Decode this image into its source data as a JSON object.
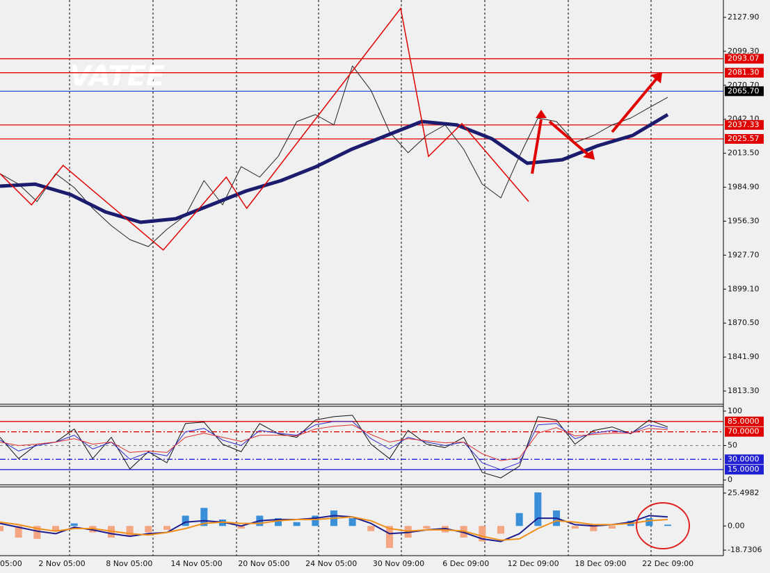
{
  "chart_data": [
    {
      "type": "line",
      "watermark": "VATEE",
      "ylim": [
        1802.2,
        2142.5
      ],
      "yticks": [
        {
          "value": 2127.9,
          "label": "2127.90"
        },
        {
          "value": 2099.3,
          "label": "2099.30"
        },
        {
          "value": 2070.7,
          "label": "2070.70"
        },
        {
          "value": 2042.1,
          "label": "2042.10"
        },
        {
          "value": 2013.5,
          "label": "2013.50"
        },
        {
          "value": 1984.9,
          "label": "1984.90"
        },
        {
          "value": 1956.3,
          "label": "1956.30"
        },
        {
          "value": 1927.7,
          "label": "1927.70"
        },
        {
          "value": 1899.1,
          "label": "1899.10"
        },
        {
          "value": 1870.5,
          "label": "1870.50"
        },
        {
          "value": 1841.9,
          "label": "1841.90"
        },
        {
          "value": 1813.3,
          "label": "1813.30"
        }
      ],
      "levels": [
        {
          "value": 2093.07,
          "color": "#e00000"
        },
        {
          "value": 2081.3,
          "label": "2081.30",
          "color": "#e00000"
        },
        {
          "value": 2065.7,
          "label": "2065.70",
          "color": "#3050e0",
          "box": "#000000"
        },
        {
          "value": 2037.33,
          "color": "#e00000"
        },
        {
          "value": 2025.57,
          "color": "#e00000"
        }
      ],
      "series": [
        {
          "color": "#222222",
          "width": 1,
          "values": [
            1996.3,
            1987.5,
            1972.9,
            1996.3,
            1984.6,
            1967.1,
            1952.5,
            1940.8,
            1934.9,
            1949.5,
            1961.2,
            1990.5,
            1970.0,
            2002.2,
            1993.4,
            2010.9,
            2040.2,
            2046.0,
            2037.3,
            2087.0,
            2066.5,
            2031.4,
            2013.9,
            2028.5,
            2037.3,
            2016.8,
            1987.5,
            1975.9,
            2010.9,
            2043.1,
            2040.2,
            2022.6,
            2028.5,
            2037.3,
            2043.1,
            2051.9,
            2060.6
          ]
        },
        {
          "color": "#1c1c6e",
          "width": 5,
          "values": [
            1985.8,
            1987.5,
            1978.8,
            1964.1,
            1955.4,
            1958.3,
            1970.0,
            1981.7,
            1990.5,
            2002.2,
            2016.8,
            2028.5,
            2040.2,
            2037.3,
            2025.6,
            2005.1,
            2008.0,
            2019.7,
            2028.5,
            2046.0
          ]
        }
      ],
      "zigzag": {
        "color": "#e00000",
        "x": [
          0,
          1.7,
          3.4,
          8.8,
          12.2,
          13.3,
          21.6,
          23.1,
          24.9,
          28.5
        ],
        "values": [
          1996.3,
          1970.0,
          2003.3,
          1932.0,
          1993.4,
          1967.1,
          2135.5,
          2010.9,
          2038.4,
          1972.9
        ]
      }
    },
    {
      "type": "line",
      "ylim": [
        -7,
        107
      ],
      "yticks": [
        100,
        50,
        0
      ],
      "levels": [
        {
          "value": 85,
          "label": "85.0000",
          "color": "#e00000"
        },
        {
          "value": 70,
          "label": "70.0000",
          "color": "#e00000",
          "dash": true
        },
        {
          "value": 30,
          "label": "30.0000",
          "color": "#2020d0",
          "dash": true
        },
        {
          "value": 15,
          "label": "15.0000",
          "color": "#2020d0"
        }
      ],
      "series": [
        {
          "color": "#111111",
          "width": 1,
          "values": [
            62,
            31,
            52,
            55,
            74,
            31,
            62,
            16,
            41,
            25,
            82,
            84,
            52,
            41,
            82,
            67,
            62,
            87,
            92,
            94,
            52,
            31,
            72,
            52,
            47,
            62,
            11,
            3,
            20,
            92,
            87,
            52,
            72,
            77,
            67,
            87,
            77
          ]
        },
        {
          "color": "#2a2ad0",
          "width": 1,
          "values": [
            58,
            42,
            50,
            55,
            65,
            45,
            55,
            30,
            40,
            35,
            70,
            75,
            58,
            50,
            72,
            68,
            65,
            80,
            85,
            85,
            60,
            45,
            62,
            55,
            50,
            55,
            25,
            15,
            25,
            80,
            82,
            60,
            68,
            72,
            68,
            80,
            75
          ]
        },
        {
          "color": "#e03030",
          "width": 1,
          "values": [
            55,
            50,
            52,
            55,
            60,
            52,
            55,
            40,
            42,
            40,
            62,
            68,
            62,
            56,
            65,
            65,
            64,
            74,
            78,
            80,
            66,
            55,
            60,
            57,
            54,
            55,
            38,
            28,
            32,
            68,
            76,
            64,
            66,
            68,
            68,
            75,
            73
          ]
        }
      ]
    },
    {
      "type": "bar",
      "ylim": [
        -23,
        30.3
      ],
      "yticks": [
        25.4982,
        {
          "value": 0,
          "label": "0.00"
        },
        -18.7306
      ],
      "values": [
        -4,
        -9,
        -10,
        -4,
        2,
        -5,
        -9,
        -8,
        -5,
        -3,
        8,
        14,
        5,
        -2,
        8,
        6,
        3,
        8,
        12,
        6,
        -4,
        -17,
        -9,
        -2,
        -5,
        -9,
        -12,
        -6,
        10,
        26,
        12,
        -2,
        -4,
        -2,
        4,
        6,
        1
      ],
      "colors": {
        "positive": "#3a8fd8",
        "negative": "#f4a582"
      },
      "series": [
        {
          "color": "#1c1c8e",
          "width": 2,
          "values": [
            2,
            -1,
            -4,
            -6,
            -1,
            -3,
            -6,
            -8,
            -6,
            -5,
            3,
            4,
            3,
            0,
            4,
            5,
            5,
            6,
            8,
            7,
            2,
            -6,
            -5,
            -3,
            -2,
            -5,
            -10,
            -12,
            -6,
            6,
            6,
            1,
            0,
            1,
            3,
            8,
            7
          ]
        },
        {
          "color": "#f0901a",
          "width": 2,
          "values": [
            3,
            1,
            -2,
            -4,
            -2,
            -2,
            -4,
            -6,
            -7,
            -5,
            -2,
            2,
            3,
            2,
            2,
            4,
            5,
            5,
            6,
            7,
            4,
            -2,
            -4,
            -3,
            -3,
            -4,
            -8,
            -11,
            -10,
            -2,
            4,
            3,
            1,
            1,
            2,
            4,
            5
          ]
        }
      ],
      "x_labels": [
        "05:00",
        "2 Nov 05:00",
        "8 Nov 05:00",
        "14 Nov 05:00",
        "20 Nov 05:00",
        "24 Nov 05:00",
        "30 Nov 09:00",
        "6 Dec 09:00",
        "12 Dec 09:00",
        "18 Dec 09:00",
        "22 Dec 09:00"
      ]
    }
  ]
}
